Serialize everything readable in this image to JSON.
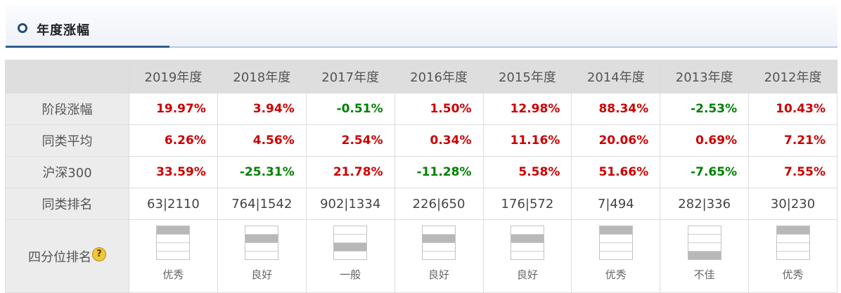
{
  "section": {
    "title": "年度涨幅"
  },
  "columns": [
    "2019年度",
    "2018年度",
    "2017年度",
    "2016年度",
    "2015年度",
    "2014年度",
    "2013年度",
    "2012年度"
  ],
  "rows": {
    "stage": {
      "label": "阶段涨幅",
      "values": [
        "19.97%",
        "3.94%",
        "-0.51%",
        "1.50%",
        "12.98%",
        "88.34%",
        "-2.53%",
        "10.43%"
      ]
    },
    "average": {
      "label": "同类平均",
      "values": [
        "6.26%",
        "4.56%",
        "2.54%",
        "0.34%",
        "11.16%",
        "20.06%",
        "0.69%",
        "7.21%"
      ]
    },
    "hs300": {
      "label": "沪深300",
      "values": [
        "33.59%",
        "-25.31%",
        "21.78%",
        "-11.28%",
        "5.58%",
        "51.66%",
        "-7.65%",
        "7.55%"
      ]
    },
    "rank": {
      "label": "同类排名",
      "values": [
        "63|2110",
        "764|1542",
        "902|1334",
        "226|650",
        "176|572",
        "7|494",
        "282|336",
        "30|230"
      ]
    },
    "quartile": {
      "label": "四分位排名",
      "quartile_levels": [
        1,
        2,
        3,
        2,
        2,
        1,
        4,
        1
      ],
      "ratings": [
        "优秀",
        "良好",
        "一般",
        "良好",
        "良好",
        "优秀",
        "不佳",
        "优秀"
      ]
    }
  },
  "help_icon": "question-mark-icon",
  "colors": {
    "up": "#cc0000",
    "down": "#008000",
    "accent": "#2e5f8f"
  }
}
